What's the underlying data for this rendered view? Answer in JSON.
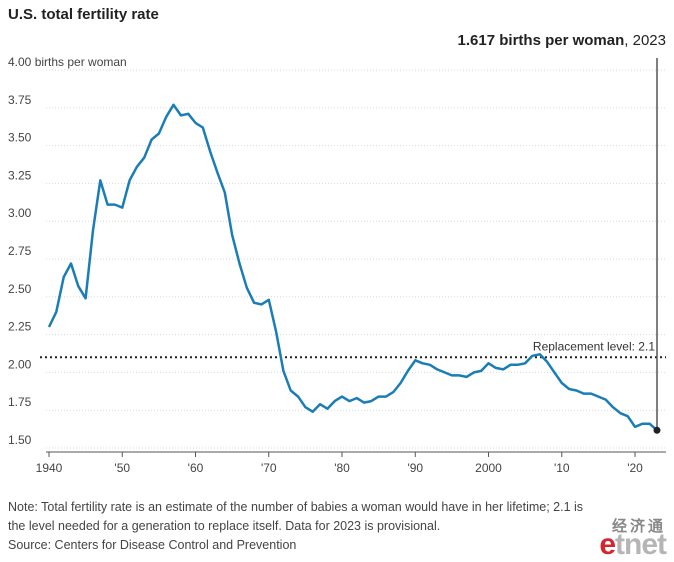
{
  "title": "U.S. total fertility rate",
  "annotation": {
    "value": "1.617 births per woman",
    "year": ", 2023"
  },
  "replacement_label": "Replacement level: 2.1",
  "note_line1": "Note: Total fertility rate is an estimate of the number of babies a woman would have in her lifetime; 2.1 is",
  "note_line2": "the level needed for a generation to replace itself. Data for 2023 is provisional.",
  "source": "Source: Centers for Disease Control and Prevention",
  "logo": {
    "cn": "经济通",
    "en_e": "e",
    "en_rest": "tnet"
  },
  "chart_data": {
    "type": "line",
    "title": "U.S. total fertility rate",
    "ylabel": "births per woman",
    "ylim": [
      1.5,
      4.0
    ],
    "xlim": [
      1940,
      2023
    ],
    "y_ticks": [
      {
        "v": 4.0,
        "label": "4.00 births per woman"
      },
      {
        "v": 3.75,
        "label": "3.75"
      },
      {
        "v": 3.5,
        "label": "3.50"
      },
      {
        "v": 3.25,
        "label": "3.25"
      },
      {
        "v": 3.0,
        "label": "3.00"
      },
      {
        "v": 2.75,
        "label": "2.75"
      },
      {
        "v": 2.5,
        "label": "2.50"
      },
      {
        "v": 2.25,
        "label": "2.25"
      },
      {
        "v": 2.0,
        "label": "2.00"
      },
      {
        "v": 1.75,
        "label": "1.75"
      },
      {
        "v": 1.5,
        "label": "1.50"
      }
    ],
    "x_ticks": [
      {
        "v": 1940,
        "label": "1940"
      },
      {
        "v": 1950,
        "label": "'50"
      },
      {
        "v": 1960,
        "label": "'60"
      },
      {
        "v": 1970,
        "label": "'70"
      },
      {
        "v": 1980,
        "label": "'80"
      },
      {
        "v": 1990,
        "label": "'90"
      },
      {
        "v": 2000,
        "label": "2000"
      },
      {
        "v": 2010,
        "label": "'10"
      },
      {
        "v": 2020,
        "label": "'20"
      }
    ],
    "reference_line": {
      "y": 2.1,
      "label": "Replacement level: 2.1"
    },
    "highlight": {
      "x": 2023,
      "y": 1.617
    },
    "color": "#1a7db5",
    "x": [
      1940,
      1941,
      1942,
      1943,
      1944,
      1945,
      1946,
      1947,
      1948,
      1949,
      1950,
      1951,
      1952,
      1953,
      1954,
      1955,
      1956,
      1957,
      1958,
      1959,
      1960,
      1961,
      1962,
      1963,
      1964,
      1965,
      1966,
      1967,
      1968,
      1969,
      1970,
      1971,
      1972,
      1973,
      1974,
      1975,
      1976,
      1977,
      1978,
      1979,
      1980,
      1981,
      1982,
      1983,
      1984,
      1985,
      1986,
      1987,
      1988,
      1989,
      1990,
      1991,
      1992,
      1993,
      1994,
      1995,
      1996,
      1997,
      1998,
      1999,
      2000,
      2001,
      2002,
      2003,
      2004,
      2005,
      2006,
      2007,
      2008,
      2009,
      2010,
      2011,
      2012,
      2013,
      2014,
      2015,
      2016,
      2017,
      2018,
      2019,
      2020,
      2021,
      2022,
      2023
    ],
    "y": [
      2.3,
      2.4,
      2.63,
      2.72,
      2.57,
      2.49,
      2.94,
      3.27,
      3.11,
      3.11,
      3.09,
      3.27,
      3.36,
      3.42,
      3.54,
      3.58,
      3.69,
      3.77,
      3.7,
      3.71,
      3.65,
      3.62,
      3.46,
      3.32,
      3.19,
      2.91,
      2.72,
      2.56,
      2.46,
      2.45,
      2.48,
      2.27,
      2.01,
      1.88,
      1.84,
      1.77,
      1.74,
      1.79,
      1.76,
      1.81,
      1.84,
      1.81,
      1.83,
      1.8,
      1.81,
      1.84,
      1.84,
      1.87,
      1.93,
      2.01,
      2.08,
      2.06,
      2.05,
      2.02,
      2.0,
      1.98,
      1.98,
      1.97,
      2.0,
      2.01,
      2.06,
      2.03,
      2.02,
      2.05,
      2.05,
      2.06,
      2.11,
      2.12,
      2.07,
      2.0,
      1.93,
      1.89,
      1.88,
      1.86,
      1.86,
      1.84,
      1.82,
      1.77,
      1.73,
      1.71,
      1.64,
      1.66,
      1.66,
      1.617
    ]
  }
}
